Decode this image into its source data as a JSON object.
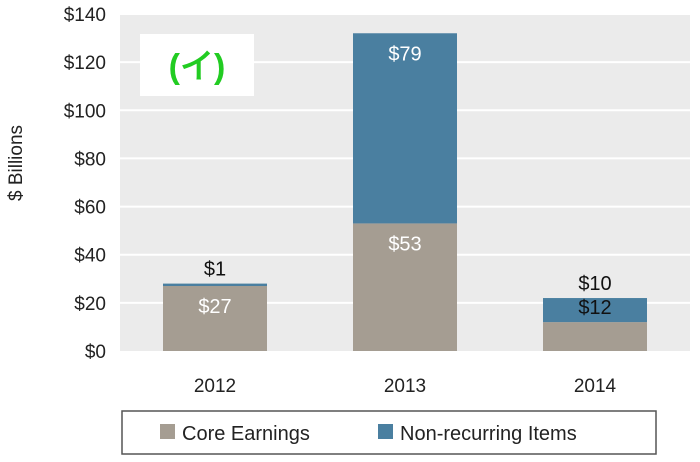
{
  "chart_data": {
    "type": "bar",
    "stacked": true,
    "categories": [
      "2012",
      "2013",
      "2014"
    ],
    "series": [
      {
        "name": "Core Earnings",
        "values": [
          27,
          53,
          12
        ],
        "labels": [
          "$27",
          "$53",
          "$12"
        ],
        "color": "#a59d92"
      },
      {
        "name": "Non-recurring Items",
        "values": [
          1,
          79,
          10
        ],
        "labels": [
          "$1",
          "$79",
          "$10"
        ],
        "color": "#4a7fa0"
      }
    ],
    "ylabel": "$ Billions",
    "ylim": [
      0,
      140
    ],
    "yticks": [
      0,
      20,
      40,
      60,
      80,
      100,
      120,
      140
    ],
    "ytick_labels": [
      "$0",
      "$20",
      "$40",
      "$60",
      "$80",
      "$100",
      "$120",
      "$140"
    ],
    "grid": true,
    "legend_position": "bottom",
    "plot_background": "#ebebeb",
    "gridline_color": "#ffffff"
  },
  "badge": {
    "text": "(イ)",
    "color": "#22cc22"
  }
}
